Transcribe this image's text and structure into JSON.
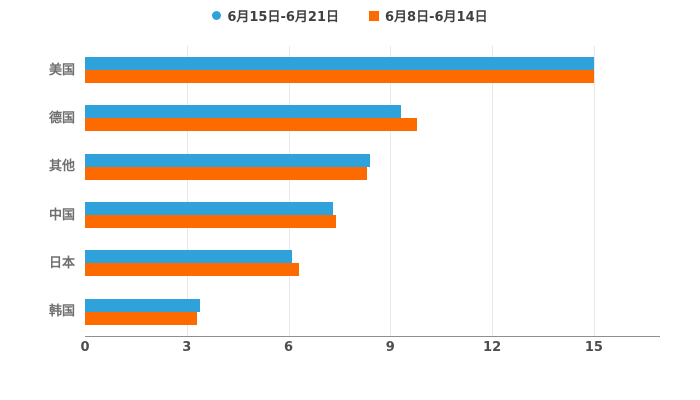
{
  "chart_data": {
    "type": "bar",
    "orientation": "horizontal",
    "title": "",
    "categories": [
      "美国",
      "德国",
      "其他",
      "中国",
      "日本",
      "韩国"
    ],
    "series": [
      {
        "name": "6月15日-6月21日",
        "color": "#2FA2DC",
        "marker": "circle",
        "values": [
          15,
          9.3,
          8.4,
          7.3,
          6.1,
          3.4
        ]
      },
      {
        "name": "6月8日-6月14日",
        "color": "#FC6A00",
        "marker": "square",
        "values": [
          15,
          9.8,
          8.3,
          7.4,
          6.3,
          3.3
        ]
      }
    ],
    "xlim": [
      0,
      15
    ],
    "xticks": [
      0,
      3,
      6,
      9,
      12,
      15
    ],
    "grid": true,
    "legend_position": "top",
    "background": "#ffffff"
  }
}
